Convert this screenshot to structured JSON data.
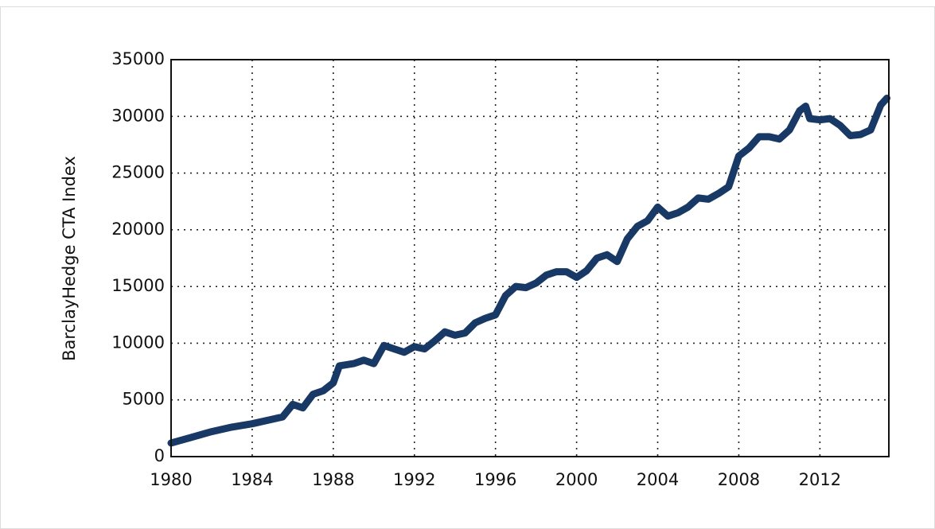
{
  "chart_data": {
    "type": "line",
    "ylabel": "BarclayHedge CTA Index",
    "x": [
      1980,
      1981,
      1982,
      1983,
      1984,
      1985,
      1985.5,
      1986,
      1986.5,
      1987,
      1987.5,
      1988,
      1988.3,
      1989,
      1989.5,
      1990,
      1990.5,
      1991,
      1991.5,
      1992,
      1992.5,
      1993,
      1993.5,
      1994,
      1994.5,
      1995,
      1995.5,
      1996,
      1996.5,
      1997,
      1997.5,
      1998,
      1998.5,
      1999,
      1999.5,
      2000,
      2000.5,
      2001,
      2001.5,
      2002,
      2002.5,
      2003,
      2003.5,
      2004,
      2004.5,
      2005,
      2005.5,
      2006,
      2006.5,
      2007,
      2007.5,
      2008,
      2008.5,
      2009,
      2009.5,
      2010,
      2010.5,
      2011,
      2011.3,
      2011.5,
      2012,
      2012.5,
      2013,
      2013.5,
      2014,
      2014.5,
      2015,
      2015.3
    ],
    "values": [
      1200,
      1700,
      2200,
      2600,
      2900,
      3300,
      3500,
      4600,
      4300,
      5500,
      5800,
      6500,
      8000,
      8200,
      8500,
      8200,
      9800,
      9500,
      9200,
      9700,
      9500,
      10200,
      11000,
      10700,
      10900,
      11800,
      12200,
      12500,
      14200,
      15000,
      14900,
      15300,
      16000,
      16300,
      16300,
      15800,
      16400,
      17500,
      17800,
      17200,
      19200,
      20300,
      20800,
      22000,
      21200,
      21500,
      22000,
      22800,
      22700,
      23200,
      23800,
      26500,
      27200,
      28200,
      28200,
      28000,
      28800,
      30500,
      30900,
      29800,
      29700,
      29800,
      29200,
      28300,
      28400,
      28800,
      31000,
      31600
    ],
    "color": "#183966",
    "xlim": [
      1980,
      2015.4
    ],
    "xticks": [
      1980,
      1984,
      1988,
      1992,
      1996,
      2000,
      2004,
      2008,
      2012
    ],
    "ylim": [
      0,
      35000
    ],
    "yticks": [
      0,
      5000,
      10000,
      15000,
      20000,
      25000,
      30000,
      35000
    ],
    "grid": true
  }
}
